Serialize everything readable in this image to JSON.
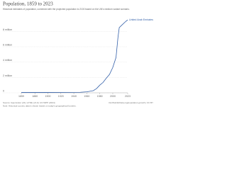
{
  "chart_data": {
    "type": "line",
    "title": "Population, 1859 to 2023",
    "subtitle": "Historical estimates of population, combined with the projected population to 2100 based on the UN's medium variant scenario.",
    "x": [
      1859,
      1900,
      1950,
      1960,
      1970,
      1975,
      1980,
      1985,
      1990,
      1995,
      2000,
      2005,
      2008,
      2010,
      2015,
      2020,
      2023
    ],
    "series": [
      {
        "name": "United Arab Emirates",
        "color": "#3360a9",
        "values": [
          40000,
          50000,
          70000,
          130000,
          280000,
          550000,
          1000000,
          1350000,
          1900000,
          2400000,
          3300000,
          4600000,
          7200000,
          8500000,
          8900000,
          9300000,
          9500000
        ]
      }
    ],
    "xlim": [
      1859,
      2023
    ],
    "xticks": [
      1859,
      1880,
      1900,
      1920,
      1940,
      1960,
      1980,
      2000,
      2023
    ],
    "ylim": [
      0,
      9600000
    ],
    "yticks": [
      0,
      {
        "value": 2000000,
        "label": "2 million"
      },
      {
        "value": 4000000,
        "label": "4 million"
      },
      {
        "value": 6000000,
        "label": "6 million"
      },
      {
        "value": 8000000,
        "label": "8 million"
      }
    ],
    "grid": true,
    "source": "Source: Gapminder (v6); HYDE (v3.3); UN WPP (2024)",
    "note": "Note: Historical country data is shown based on today's geographical borders.",
    "credit": "OurWorldinData.org/population-growth | CC BY"
  }
}
